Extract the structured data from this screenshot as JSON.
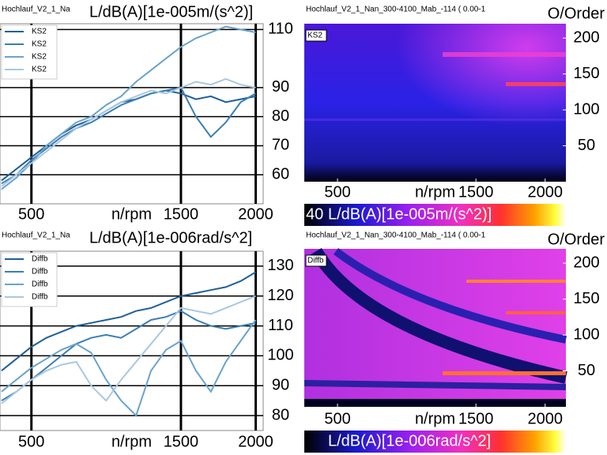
{
  "chart_data": [
    {
      "type": "line",
      "title": "Hochlauf_V2_1_Na",
      "y_label": "L/dB(A)[1e-005m/(s^2)]",
      "x_label": "n/rpm",
      "x": [
        300,
        400,
        500,
        600,
        700,
        800,
        900,
        1000,
        1100,
        1200,
        1300,
        1400,
        1500,
        1600,
        1700,
        1800,
        1900,
        2000
      ],
      "xlim": [
        290,
        2050
      ],
      "xticks": [
        500,
        1500,
        2000
      ],
      "ylim": [
        50,
        112
      ],
      "yticks": [
        60,
        70,
        80,
        90,
        110
      ],
      "grid": true,
      "legend": "top-left",
      "series": [
        {
          "name": "KS2",
          "color": "#1f5f9a",
          "values": [
            58,
            62,
            66,
            70,
            74,
            77,
            79,
            82,
            85,
            86,
            88,
            89,
            88,
            86,
            87,
            85,
            86,
            87
          ]
        },
        {
          "name": "KS2",
          "color": "#3a7fb5",
          "values": [
            57,
            60,
            65,
            69,
            73,
            76,
            78,
            81,
            84,
            86,
            88,
            89,
            90,
            80,
            73,
            78,
            85,
            88
          ]
        },
        {
          "name": "KS2",
          "color": "#6aa3cc",
          "values": [
            55,
            59,
            64,
            70,
            74,
            78,
            80,
            84,
            87,
            92,
            96,
            100,
            104,
            107,
            109,
            111,
            110,
            109
          ]
        },
        {
          "name": "KS2",
          "color": "#a9c8e0",
          "values": [
            56,
            60,
            64,
            68,
            72,
            76,
            79,
            82,
            85,
            87,
            89,
            88,
            90,
            92,
            91,
            93,
            91,
            90
          ]
        }
      ]
    },
    {
      "type": "line",
      "title": "Hochlauf_V2_1_Na",
      "y_label": "L/dB(A)[1e-006rad/s^2]",
      "x_label": "n/rpm",
      "x": [
        300,
        400,
        500,
        600,
        700,
        800,
        900,
        1000,
        1100,
        1200,
        1300,
        1400,
        1500,
        1600,
        1700,
        1800,
        1900,
        2000
      ],
      "xlim": [
        290,
        2050
      ],
      "xticks": [
        500,
        1500,
        2000
      ],
      "ylim": [
        75,
        135
      ],
      "yticks": [
        80,
        90,
        100,
        110,
        120,
        130
      ],
      "grid": true,
      "legend": "top-left",
      "series": [
        {
          "name": "Diffb",
          "color": "#1f5f9a",
          "values": [
            95,
            99,
            103,
            106,
            108,
            110,
            111,
            112,
            113,
            115,
            116,
            118,
            120,
            121,
            122,
            123,
            125,
            128
          ]
        },
        {
          "name": "Diffb",
          "color": "#3a7fb5",
          "values": [
            85,
            88,
            92,
            96,
            100,
            104,
            106,
            107,
            106,
            109,
            112,
            113,
            115,
            112,
            110,
            109,
            110,
            111
          ]
        },
        {
          "name": "Diffb",
          "color": "#6aa3cc",
          "values": [
            88,
            92,
            96,
            99,
            102,
            104,
            101,
            92,
            85,
            80,
            95,
            102,
            105,
            95,
            88,
            98,
            105,
            112
          ]
        },
        {
          "name": "Diffb",
          "color": "#a9c8e0",
          "values": [
            84,
            88,
            92,
            95,
            97,
            98,
            90,
            85,
            92,
            98,
            104,
            110,
            116,
            115,
            114,
            116,
            118,
            120
          ]
        }
      ]
    },
    {
      "type": "heatmap",
      "title": "Hochlauf_V2_1_Nan_300-4100_Mab_-114 ( 0.00-1",
      "y_label": "O/Order",
      "x_label": "n/rpm",
      "legend_label": "KS2",
      "xlim": [
        260,
        2150
      ],
      "xticks": [
        500,
        1500,
        2000
      ],
      "ylim": [
        0,
        220
      ],
      "yticks": [
        50,
        100,
        150,
        200
      ],
      "colorbar_label": "L/dB(A)[1e-005m/(s^2)]",
      "colorbar_ticks": [
        40
      ]
    },
    {
      "type": "heatmap",
      "title": "Hochlauf_V2_1_Nan_300-4100_Mab_-114 ( 0.00-1",
      "y_label": "O/Order",
      "x_label": "n/rpm",
      "legend_label": "Diffb",
      "xlim": [
        260,
        2150
      ],
      "xticks": [
        500,
        1500,
        2000
      ],
      "ylim": [
        0,
        220
      ],
      "yticks": [
        50,
        100,
        150,
        200
      ],
      "colorbar_label": "L/dB(A)[1e-006rad/s^2]"
    }
  ]
}
